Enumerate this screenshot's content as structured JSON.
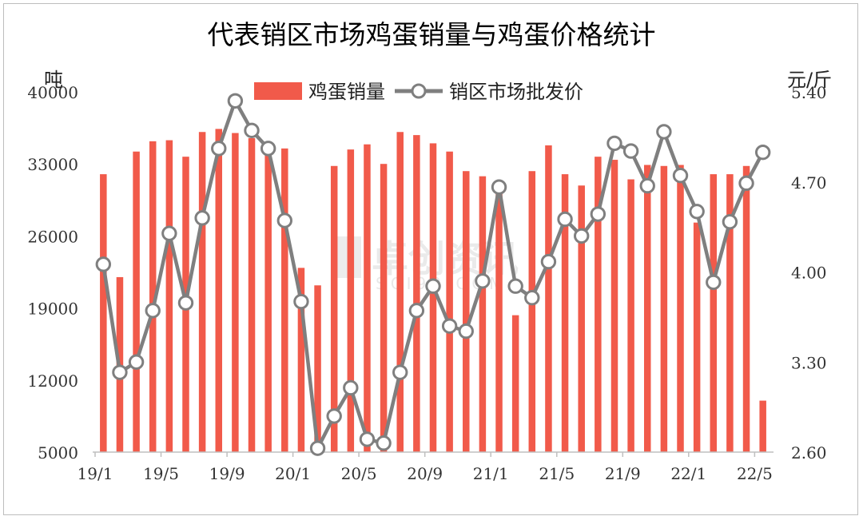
{
  "chart_data": {
    "type": "bar+line",
    "title": "代表销区市场鸡蛋销量与鸡蛋价格统计",
    "left_unit": "吨",
    "right_unit": "元/斤",
    "legend": {
      "bar_label": "鸡蛋销量",
      "line_label": "销区市场批发价",
      "position": "top-center"
    },
    "colors": {
      "bar": "#f15a4a",
      "line": "#7f7f7f",
      "marker_fill": "#ffffff"
    },
    "x_tick_labels": [
      "19/1",
      "19/5",
      "19/9",
      "20/1",
      "20/5",
      "20/9",
      "21/1",
      "21/5",
      "21/9",
      "22/1",
      "22/5"
    ],
    "x_tick_every": 4,
    "y_left": {
      "min": 5000,
      "max": 40000,
      "ticks": [
        "5000",
        "12000",
        "19000",
        "26000",
        "33000",
        "40000"
      ]
    },
    "y_right": {
      "min": 2.6,
      "max": 5.4,
      "ticks": [
        "2.60",
        "3.30",
        "4.00",
        "4.70",
        "5.40"
      ]
    },
    "categories": [
      "19/1",
      "19/2",
      "19/3",
      "19/4",
      "19/5",
      "19/6",
      "19/7",
      "19/8",
      "19/9",
      "19/10",
      "19/11",
      "19/12",
      "20/1",
      "20/2",
      "20/3",
      "20/4",
      "20/5",
      "20/6",
      "20/7",
      "20/8",
      "20/9",
      "20/10",
      "20/11",
      "20/12",
      "21/1",
      "21/2",
      "21/3",
      "21/4",
      "21/5",
      "21/6",
      "21/7",
      "21/8",
      "21/9",
      "21/10",
      "21/11",
      "21/12",
      "22/1",
      "22/2",
      "22/3",
      "22/4",
      "22/5"
    ],
    "series": [
      {
        "name": "鸡蛋销量",
        "kind": "bar",
        "axis": "left",
        "values": [
          32000,
          22000,
          34200,
          35200,
          35300,
          33700,
          36100,
          36400,
          36000,
          35500,
          34600,
          34500,
          22900,
          21200,
          32800,
          34400,
          34900,
          33000,
          36100,
          35800,
          35000,
          34200,
          32300,
          31800,
          30800,
          18300,
          32300,
          34800,
          32000,
          30900,
          33700,
          33400,
          31500,
          32900,
          32800,
          32900,
          27300,
          32000,
          32000,
          32800,
          10000
        ]
      },
      {
        "name": "销区市场批发价",
        "kind": "line",
        "axis": "right",
        "values": [
          4.06,
          3.22,
          3.3,
          3.7,
          4.3,
          3.76,
          4.42,
          4.96,
          5.33,
          5.1,
          4.96,
          4.4,
          3.77,
          2.63,
          2.88,
          3.1,
          2.7,
          2.67,
          3.22,
          3.7,
          3.89,
          3.58,
          3.54,
          3.93,
          4.66,
          3.89,
          3.8,
          4.08,
          4.41,
          4.28,
          4.45,
          5.0,
          4.94,
          4.67,
          5.09,
          4.75,
          4.47,
          3.92,
          4.39,
          4.69,
          4.93
        ]
      }
    ],
    "grid": false
  },
  "watermark": {
    "main": "卓创资讯",
    "sub": "SCI99.COM"
  }
}
